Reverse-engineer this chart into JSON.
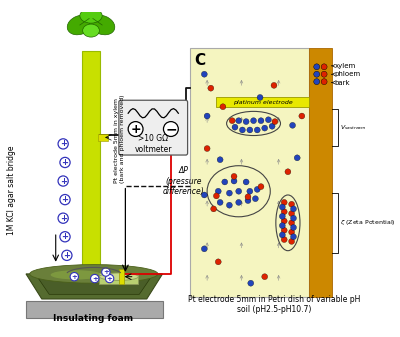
{
  "bg_color": "#ffffff",
  "bottom_label_left": "Insulating foam",
  "bottom_label_right": "Pt electrode 5mm in Petri dish of variable pH\nsoil (pH2.5-pH10.7)",
  "left_label": "1M KCl agar salt bridge",
  "top_electrode_label": "Pt electrode 5mm in xylem\n(bark and phloem removed)",
  "voltmeter_label": ">10 GΩ\nvoltmeter",
  "pressure_label": "ΔP\n(pressure\ndifference)",
  "panel_c_label": "C",
  "xylem_label": "xylem",
  "phloem_label": "phloem",
  "bark_label": "bark",
  "platinum_label": "platinum electrode",
  "vsap_label": "V_sastream",
  "zeta_label": "ζ (Zeta Potential)",
  "tree_color": "#c8e000",
  "leaf_color": "#44aa00",
  "bark_strip_color": "#cc8800",
  "electrode_color": "#e8e800",
  "red_dot_color": "#dd2200",
  "blue_dot_color": "#2244bb",
  "wire_black": "#111111",
  "wire_red": "#dd0000",
  "foam_color": "#aaaaaa",
  "soil_color": "#667733",
  "bowl_color": "#4a5e28",
  "panel_c_bg": "#f5f5c0"
}
